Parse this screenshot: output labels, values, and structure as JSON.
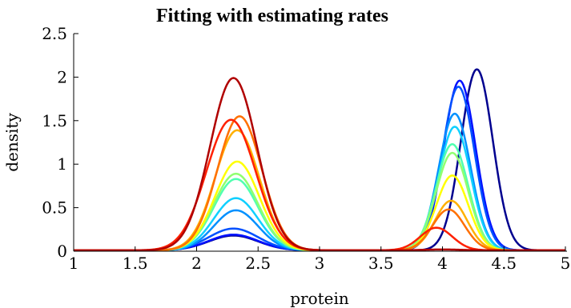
{
  "chart_data": {
    "type": "line",
    "title": "Fitting with estimating rates",
    "xlabel": "protein",
    "ylabel": "density",
    "xlim": [
      1,
      5
    ],
    "ylim": [
      0,
      2.5
    ],
    "xticks": [
      "1",
      "1.5",
      "2",
      "2.5",
      "3",
      "3.5",
      "4",
      "4.5",
      "5"
    ],
    "yticks": [
      "0",
      "0.5",
      "1",
      "1.5",
      "2",
      "2.5"
    ],
    "grid": false,
    "legend": "none",
    "series": [
      {
        "color": "#00008f",
        "peak1": {
          "mu": 2.3,
          "sigma": 0.2,
          "h": 0.17
        },
        "peak2": {
          "mu": 4.28,
          "sigma": 0.13,
          "h": 2.08
        }
      },
      {
        "color": "#0010ff",
        "peak1": {
          "mu": 2.3,
          "sigma": 0.2,
          "h": 0.18
        },
        "peak2": {
          "mu": 4.14,
          "sigma": 0.13,
          "h": 1.95
        }
      },
      {
        "color": "#0050ff",
        "peak1": {
          "mu": 2.3,
          "sigma": 0.2,
          "h": 0.25
        },
        "peak2": {
          "mu": 4.13,
          "sigma": 0.13,
          "h": 1.88
        }
      },
      {
        "color": "#0090ff",
        "peak1": {
          "mu": 2.32,
          "sigma": 0.18,
          "h": 0.46
        },
        "peak2": {
          "mu": 4.1,
          "sigma": 0.13,
          "h": 1.57
        }
      },
      {
        "color": "#10d0ff",
        "peak1": {
          "mu": 2.32,
          "sigma": 0.18,
          "h": 0.6
        },
        "peak2": {
          "mu": 4.1,
          "sigma": 0.13,
          "h": 1.42
        }
      },
      {
        "color": "#50ffb0",
        "peak1": {
          "mu": 2.32,
          "sigma": 0.18,
          "h": 0.82
        },
        "peak2": {
          "mu": 4.08,
          "sigma": 0.13,
          "h": 1.22
        }
      },
      {
        "color": "#90ff70",
        "peak1": {
          "mu": 2.32,
          "sigma": 0.18,
          "h": 0.88
        },
        "peak2": {
          "mu": 4.08,
          "sigma": 0.13,
          "h": 1.12
        }
      },
      {
        "color": "#ffff00",
        "peak1": {
          "mu": 2.33,
          "sigma": 0.18,
          "h": 1.02
        },
        "peak2": {
          "mu": 4.08,
          "sigma": 0.13,
          "h": 0.86
        }
      },
      {
        "color": "#ffb000",
        "peak1": {
          "mu": 2.33,
          "sigma": 0.18,
          "h": 1.38
        },
        "peak2": {
          "mu": 4.07,
          "sigma": 0.13,
          "h": 0.57
        }
      },
      {
        "color": "#ff7000",
        "peak1": {
          "mu": 2.35,
          "sigma": 0.18,
          "h": 1.54
        },
        "peak2": {
          "mu": 4.05,
          "sigma": 0.13,
          "h": 0.47
        }
      },
      {
        "color": "#ff2000",
        "peak1": {
          "mu": 2.28,
          "sigma": 0.2,
          "h": 1.5
        },
        "peak2": {
          "mu": 3.95,
          "sigma": 0.13,
          "h": 0.26
        }
      },
      {
        "color": "#b00000",
        "peak1": {
          "mu": 2.3,
          "sigma": 0.19,
          "h": 1.98
        },
        "peak2": {
          "mu": 4.0,
          "sigma": 0.15,
          "h": 0.01
        }
      }
    ]
  }
}
